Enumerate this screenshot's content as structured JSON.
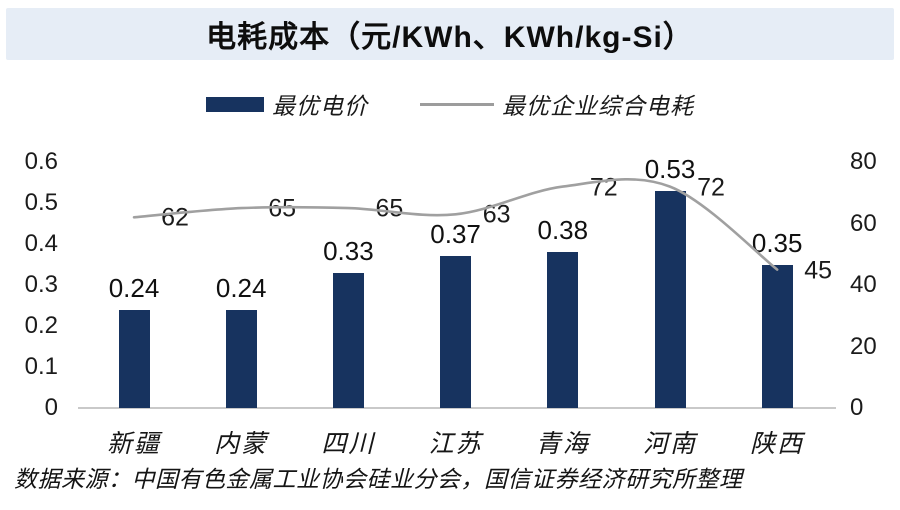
{
  "title": "电耗成本（元/KWh、KWh/kg-Si）",
  "legend": {
    "items": [
      {
        "label": "最优电价",
        "swatch": "bar-swatch",
        "color": "#17335f"
      },
      {
        "label": "最优企业综合电耗",
        "swatch": "line-swatch",
        "color": "#9c9c9c"
      }
    ]
  },
  "source_note": "数据来源：中国有色金属工业协会硅业分会，国信证券经济研究所整理",
  "colors": {
    "bar": "#17335f",
    "line": "#a0a0a0",
    "title_band_bg": "#e6edf6",
    "axis_line": "#c9c9c9",
    "text": "#141414"
  },
  "chart_data": {
    "type": "bar",
    "subtype": "bar-and-line-dual-axis",
    "title": "电耗成本（元/KWh、KWh/kg-Si）",
    "categories": [
      "新疆",
      "内蒙",
      "四川",
      "江苏",
      "青海",
      "河南",
      "陕西"
    ],
    "series": [
      {
        "name": "最优电价",
        "type": "bar",
        "axis": "left",
        "unit": "元/KWh",
        "values": [
          0.24,
          0.24,
          0.33,
          0.37,
          0.38,
          0.53,
          0.35
        ],
        "labels": [
          "0.24",
          "0.24",
          "0.33",
          "0.37",
          "0.38",
          "0.53",
          "0.35"
        ],
        "color": "#17335f"
      },
      {
        "name": "最优企业综合电耗",
        "type": "line",
        "axis": "right",
        "unit": "KWh/kg-Si",
        "values": [
          62,
          65,
          65,
          63,
          72,
          72,
          45
        ],
        "labels": [
          "62",
          "65",
          "65",
          "63",
          "72",
          "72",
          "45"
        ],
        "color": "#a0a0a0"
      }
    ],
    "left_axis": {
      "min": 0,
      "max": 0.6,
      "step": 0.1,
      "ticks": [
        "0.6",
        "0.5",
        "0.4",
        "0.3",
        "0.2",
        "0.1",
        "0"
      ]
    },
    "right_axis": {
      "min": 0,
      "max": 80,
      "step": 20,
      "ticks": [
        "80",
        "60",
        "40",
        "20",
        "0"
      ]
    },
    "grid": false,
    "legend_position": "top",
    "xlabel": "",
    "ylabel_left": "元/KWh",
    "ylabel_right": "KWh/kg-Si"
  }
}
